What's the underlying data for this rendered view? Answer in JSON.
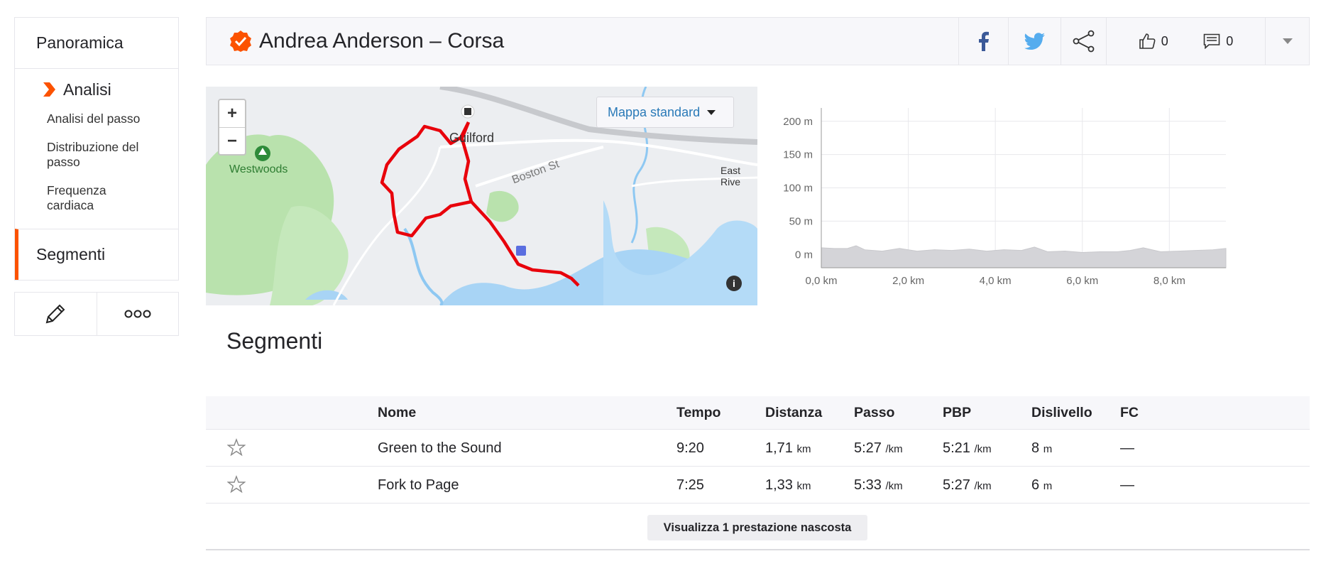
{
  "sidebar": {
    "overview": "Panoramica",
    "analysis": "Analisi",
    "sub_items": [
      "Analisi del passo",
      "Distribuzione del passo",
      "Frequenza cardiaca"
    ],
    "segments": "Segmenti",
    "actions": [
      "edit-icon",
      "more-icon"
    ]
  },
  "header": {
    "title": "Andrea Anderson – Corsa",
    "kudos_count": "0",
    "comments_count": "0",
    "icons": [
      "facebook-icon",
      "twitter-icon",
      "share-icon",
      "thumbs-up-icon",
      "comment-icon",
      "dropdown-icon"
    ]
  },
  "map": {
    "zoom_in": "+",
    "zoom_out": "−",
    "style_selector": "Mappa standard",
    "labels": {
      "westwoods": "Westwoods",
      "guilford": "Guilford",
      "boston_st": "Boston St",
      "east_river": "East Rive"
    },
    "info": "i"
  },
  "elevation": {
    "y_ticks": [
      "0 m",
      "50 m",
      "100 m",
      "150 m",
      "200 m"
    ],
    "x_ticks": [
      "0,0 km",
      "2,0 km",
      "4,0 km",
      "6,0 km",
      "8,0 km"
    ]
  },
  "chart_data": {
    "type": "area",
    "title": "",
    "xlabel": "",
    "ylabel": "",
    "xlim": [
      0,
      9.3
    ],
    "ylim": [
      -20,
      220
    ],
    "x": [
      0,
      0.3,
      0.6,
      0.8,
      1.0,
      1.4,
      1.8,
      2.2,
      2.6,
      3.0,
      3.4,
      3.8,
      4.2,
      4.6,
      4.9,
      5.2,
      5.6,
      6.0,
      6.4,
      6.8,
      7.1,
      7.4,
      7.8,
      8.2,
      8.6,
      9.0,
      9.3
    ],
    "y": [
      10,
      9,
      9,
      13,
      7,
      5,
      9,
      5,
      7,
      6,
      8,
      5,
      7,
      6,
      11,
      4,
      5,
      3,
      4,
      4,
      6,
      10,
      4,
      5,
      6,
      7,
      9
    ],
    "grid": true
  },
  "segments": {
    "title": "Segmenti",
    "columns": [
      "Nome",
      "Tempo",
      "Distanza",
      "Passo",
      "PBP",
      "Dislivello",
      "FC"
    ],
    "rows": [
      {
        "name": "Green to the Sound",
        "time": "9:20",
        "distance": "1,71",
        "distance_unit": "km",
        "pace": "5:27",
        "pace_unit": "/km",
        "pbp": "5:21",
        "pbp_unit": "/km",
        "elev": "8",
        "elev_unit": "m",
        "hr": "—"
      },
      {
        "name": "Fork to Page",
        "time": "7:25",
        "distance": "1,33",
        "distance_unit": "km",
        "pace": "5:33",
        "pace_unit": "/km",
        "pbp": "5:27",
        "pbp_unit": "/km",
        "elev": "6",
        "elev_unit": "m",
        "hr": "—"
      }
    ],
    "hidden_button": "Visualizza 1 prestazione nascosta"
  },
  "colors": {
    "accent": "#fc5200",
    "route": "#e8000b",
    "link": "#2a7ab8"
  }
}
